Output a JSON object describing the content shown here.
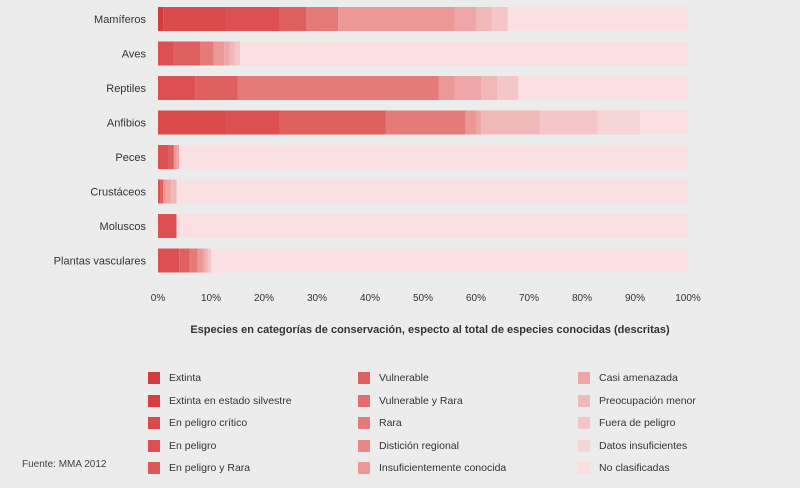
{
  "chart_data": {
    "type": "bar",
    "orientation": "horizontal",
    "stacked": true,
    "categories": [
      "Mamíferos",
      "Aves",
      "Reptiles",
      "Anfibios",
      "Peces",
      "Crustáceos",
      "Moluscos",
      "Plantas vasculares"
    ],
    "series": [
      {
        "name": "Extinta",
        "color": "#d23b3f",
        "values": [
          1,
          0,
          0,
          0,
          0,
          0,
          0,
          0
        ]
      },
      {
        "name": "Extinta en estado silvestre",
        "color": "#d6403f",
        "values": [
          0,
          0,
          0,
          0,
          0,
          0,
          0,
          0
        ]
      },
      {
        "name": "En peligro crítico",
        "color": "#d94a4b",
        "values": [
          12,
          0,
          0,
          13,
          0,
          0,
          0,
          0
        ]
      },
      {
        "name": "En peligro",
        "color": "#dc5052",
        "values": [
          10,
          3,
          7,
          10,
          2,
          0.5,
          3.5,
          4
        ]
      },
      {
        "name": "En peligro y Rara",
        "color": "#de5858",
        "values": [
          0,
          0,
          0,
          0,
          0,
          0,
          0,
          0
        ]
      },
      {
        "name": "Vulnerable",
        "color": "#e0605f",
        "values": [
          5,
          5,
          8,
          20,
          1,
          0.5,
          0,
          2
        ]
      },
      {
        "name": "Vulnerable y Rara",
        "color": "#e36e6c",
        "values": [
          0,
          0,
          0,
          0,
          0,
          0,
          0,
          0
        ]
      },
      {
        "name": "Rara",
        "color": "#e57b78",
        "values": [
          6,
          2.5,
          38,
          15,
          0,
          0,
          0,
          1.5
        ]
      },
      {
        "name": "Distición regional",
        "color": "#e88886",
        "values": [
          0,
          0,
          0,
          0,
          0,
          0,
          0,
          0
        ]
      },
      {
        "name": "Insuficientemente conocida",
        "color": "#eb9896",
        "values": [
          22,
          2,
          3,
          2,
          0.5,
          0.5,
          0,
          1
        ]
      },
      {
        "name": "Casi amenazada",
        "color": "#eea7a6",
        "values": [
          4,
          1,
          5,
          1,
          0.5,
          1,
          0,
          0.5
        ]
      },
      {
        "name": "Preocupación menor",
        "color": "#f1b8b8",
        "values": [
          3,
          1,
          3,
          11,
          0,
          1,
          0,
          0.5
        ]
      },
      {
        "name": "Fuera de peligro",
        "color": "#f4c6c7",
        "values": [
          3,
          1,
          4,
          11,
          0,
          0,
          0,
          0.5
        ]
      },
      {
        "name": "Datos insuficientes",
        "color": "#f7d4d6",
        "values": [
          0,
          0,
          0,
          8,
          0,
          0,
          0,
          0
        ]
      },
      {
        "name": "No clasificadas",
        "color": "#fae0e3",
        "values": [
          34,
          84.5,
          32,
          9,
          96,
          96.5,
          96.5,
          90
        ]
      }
    ],
    "xlabel": "Especies en categorías de conservación, especto al total de especies conocidas (descritas)",
    "ylabel": "",
    "xlim": [
      0,
      100
    ],
    "xticks": [
      "0%",
      "10%",
      "20%",
      "30%",
      "40%",
      "50%",
      "60%",
      "70%",
      "80%",
      "90%",
      "100%"
    ],
    "grid": false,
    "legend": "bottom",
    "legend_columns": [
      [
        "Extinta",
        "Extinta en estado silvestre",
        "En peligro crítico",
        "En peligro",
        "En peligro y Rara"
      ],
      [
        "Vulnerable",
        "Vulnerable y Rara",
        "Rara",
        "Distición regional",
        "Insuficientemente conocida"
      ],
      [
        "Casi amenazada",
        "Preocupación menor",
        "Fuera de peligro",
        "Datos insuficientes",
        "No clasificadas"
      ]
    ]
  },
  "source": "Fuente: MMA 2012"
}
